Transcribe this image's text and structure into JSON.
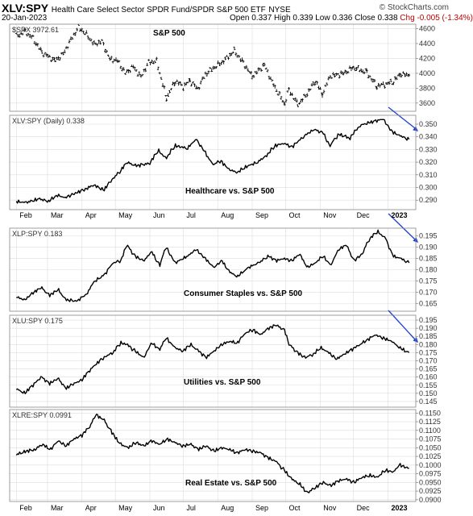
{
  "header": {
    "symbol": "XLV:SPY",
    "description": "Health Care Select Sector SPDR Fund/SPDR S&P 500 ETF",
    "exchange": "NYSE",
    "date": "20-Jan-2023",
    "open": "Open 0.337",
    "high": "High 0.339",
    "low": "Low 0.336",
    "close": "Close 0.338",
    "change": "Chg -0.005 (-1.34%)",
    "brand": "© StockCharts.com"
  },
  "colors": {
    "line": "#000000",
    "arrow": "#1f3fd0",
    "grid": "#dcdcdc",
    "border": "#888888"
  },
  "chart_data": [
    {
      "type": "ohlc",
      "series_label": "$SPX 3972.61",
      "annotation": "S&P 500",
      "y_ticks": [
        "3600",
        "3800",
        "4000",
        "4200",
        "4400",
        "4600"
      ],
      "ylim": [
        3490,
        4660
      ],
      "points": [
        [
          "2022-02-01",
          4500
        ],
        [
          "2022-02-09",
          4560
        ],
        [
          "2022-02-16",
          4470
        ],
        [
          "2022-02-24",
          4280
        ],
        [
          "2022-03-08",
          4170
        ],
        [
          "2022-03-15",
          4260
        ],
        [
          "2022-03-22",
          4450
        ],
        [
          "2022-03-29",
          4620
        ],
        [
          "2022-04-05",
          4520
        ],
        [
          "2022-04-12",
          4390
        ],
        [
          "2022-04-19",
          4430
        ],
        [
          "2022-04-26",
          4190
        ],
        [
          "2022-05-03",
          4170
        ],
        [
          "2022-05-10",
          4000
        ],
        [
          "2022-05-17",
          4090
        ],
        [
          "2022-05-24",
          3950
        ],
        [
          "2022-05-31",
          4150
        ],
        [
          "2022-06-07",
          4160
        ],
        [
          "2022-06-16",
          3670
        ],
        [
          "2022-06-24",
          3900
        ],
        [
          "2022-07-01",
          3820
        ],
        [
          "2022-07-07",
          3900
        ],
        [
          "2022-07-14",
          3790
        ],
        [
          "2022-07-21",
          3990
        ],
        [
          "2022-07-28",
          4070
        ],
        [
          "2022-08-05",
          4150
        ],
        [
          "2022-08-16",
          4300
        ],
        [
          "2022-08-24",
          4140
        ],
        [
          "2022-09-01",
          3960
        ],
        [
          "2022-09-12",
          4110
        ],
        [
          "2022-09-20",
          3850
        ],
        [
          "2022-09-30",
          3590
        ],
        [
          "2022-10-04",
          3780
        ],
        [
          "2022-10-12",
          3580
        ],
        [
          "2022-10-19",
          3700
        ],
        [
          "2022-10-28",
          3900
        ],
        [
          "2022-11-03",
          3720
        ],
        [
          "2022-11-10",
          3960
        ],
        [
          "2022-11-22",
          4000
        ],
        [
          "2022-12-01",
          4080
        ],
        [
          "2022-12-13",
          4010
        ],
        [
          "2022-12-22",
          3830
        ],
        [
          "2022-12-29",
          3850
        ],
        [
          "2023-01-06",
          3890
        ],
        [
          "2023-01-12",
          3990
        ],
        [
          "2023-01-20",
          3972.61
        ]
      ],
      "arrow": false
    },
    {
      "type": "line",
      "series_label": "XLV:SPY (Daily) 0.338",
      "annotation": "Healthcare vs. S&P 500",
      "y_ticks": [
        "0.290",
        "0.300",
        "0.310",
        "0.320",
        "0.330",
        "0.340",
        "0.350"
      ],
      "ylim": [
        0.2825,
        0.357
      ],
      "points": [
        [
          "2022-02-01",
          0.289
        ],
        [
          "2022-02-10",
          0.288
        ],
        [
          "2022-02-22",
          0.291
        ],
        [
          "2022-03-02",
          0.289
        ],
        [
          "2022-03-10",
          0.294
        ],
        [
          "2022-03-17",
          0.292
        ],
        [
          "2022-03-28",
          0.296
        ],
        [
          "2022-04-05",
          0.299
        ],
        [
          "2022-04-12",
          0.302
        ],
        [
          "2022-04-21",
          0.298
        ],
        [
          "2022-04-29",
          0.307
        ],
        [
          "2022-05-05",
          0.312
        ],
        [
          "2022-05-12",
          0.32
        ],
        [
          "2022-05-20",
          0.317
        ],
        [
          "2022-06-01",
          0.319
        ],
        [
          "2022-06-09",
          0.329
        ],
        [
          "2022-06-16",
          0.323
        ],
        [
          "2022-06-24",
          0.333
        ],
        [
          "2022-07-05",
          0.331
        ],
        [
          "2022-07-13",
          0.338
        ],
        [
          "2022-07-20",
          0.329
        ],
        [
          "2022-07-28",
          0.318
        ],
        [
          "2022-08-04",
          0.321
        ],
        [
          "2022-08-12",
          0.314
        ],
        [
          "2022-08-19",
          0.312
        ],
        [
          "2022-08-26",
          0.316
        ],
        [
          "2022-09-06",
          0.32
        ],
        [
          "2022-09-14",
          0.325
        ],
        [
          "2022-09-22",
          0.333
        ],
        [
          "2022-09-30",
          0.335
        ],
        [
          "2022-10-07",
          0.332
        ],
        [
          "2022-10-17",
          0.34
        ],
        [
          "2022-10-27",
          0.346
        ],
        [
          "2022-11-04",
          0.343
        ],
        [
          "2022-11-10",
          0.333
        ],
        [
          "2022-11-18",
          0.342
        ],
        [
          "2022-11-28",
          0.339
        ],
        [
          "2022-12-07",
          0.349
        ],
        [
          "2022-12-15",
          0.351
        ],
        [
          "2022-12-28",
          0.354
        ],
        [
          "2023-01-05",
          0.344
        ],
        [
          "2023-01-12",
          0.341
        ],
        [
          "2023-01-20",
          0.338
        ]
      ],
      "arrow": true
    },
    {
      "type": "line",
      "series_label": "XLP:SPY 0.183",
      "annotation": "Consumer Staples vs. S&P 500",
      "y_ticks": [
        "0.165",
        "0.170",
        "0.175",
        "0.180",
        "0.185",
        "0.190",
        "0.195"
      ],
      "ylim": [
        0.1615,
        0.1985
      ],
      "points": [
        [
          "2022-02-01",
          0.168
        ],
        [
          "2022-02-09",
          0.1665
        ],
        [
          "2022-02-17",
          0.17
        ],
        [
          "2022-02-24",
          0.172
        ],
        [
          "2022-03-03",
          0.1685
        ],
        [
          "2022-03-11",
          0.171
        ],
        [
          "2022-03-18",
          0.1665
        ],
        [
          "2022-03-28",
          0.166
        ],
        [
          "2022-04-06",
          0.1695
        ],
        [
          "2022-04-12",
          0.1745
        ],
        [
          "2022-04-22",
          0.178
        ],
        [
          "2022-04-29",
          0.183
        ],
        [
          "2022-05-06",
          0.184
        ],
        [
          "2022-05-12",
          0.191
        ],
        [
          "2022-05-19",
          0.186
        ],
        [
          "2022-05-27",
          0.184
        ],
        [
          "2022-06-03",
          0.188
        ],
        [
          "2022-06-10",
          0.182
        ],
        [
          "2022-06-16",
          0.19
        ],
        [
          "2022-06-24",
          0.183
        ],
        [
          "2022-07-05",
          0.186
        ],
        [
          "2022-07-13",
          0.189
        ],
        [
          "2022-07-21",
          0.185
        ],
        [
          "2022-07-29",
          0.181
        ],
        [
          "2022-08-05",
          0.184
        ],
        [
          "2022-08-12",
          0.179
        ],
        [
          "2022-08-19",
          0.177
        ],
        [
          "2022-08-29",
          0.181
        ],
        [
          "2022-09-07",
          0.183
        ],
        [
          "2022-09-16",
          0.186
        ],
        [
          "2022-09-23",
          0.184
        ],
        [
          "2022-09-30",
          0.185
        ],
        [
          "2022-10-07",
          0.184
        ],
        [
          "2022-10-14",
          0.187
        ],
        [
          "2022-10-21",
          0.181
        ],
        [
          "2022-10-28",
          0.183
        ],
        [
          "2022-11-04",
          0.186
        ],
        [
          "2022-11-11",
          0.182
        ],
        [
          "2022-11-18",
          0.189
        ],
        [
          "2022-11-25",
          0.191
        ],
        [
          "2022-12-02",
          0.184
        ],
        [
          "2022-12-09",
          0.187
        ],
        [
          "2022-12-16",
          0.194
        ],
        [
          "2022-12-23",
          0.197
        ],
        [
          "2022-12-30",
          0.194
        ],
        [
          "2023-01-06",
          0.186
        ],
        [
          "2023-01-13",
          0.185
        ],
        [
          "2023-01-20",
          0.183
        ]
      ],
      "arrow": true
    },
    {
      "type": "line",
      "series_label": "XLU:SPY 0.175",
      "annotation": "Utilities vs. S&P 500",
      "y_ticks": [
        "0.145",
        "0.150",
        "0.155",
        "0.160",
        "0.165",
        "0.170",
        "0.175",
        "0.180",
        "0.185",
        "0.190",
        "0.195"
      ],
      "ylim": [
        0.1415,
        0.198
      ],
      "points": [
        [
          "2022-02-01",
          0.153
        ],
        [
          "2022-02-09",
          0.15
        ],
        [
          "2022-02-16",
          0.155
        ],
        [
          "2022-02-24",
          0.16
        ],
        [
          "2022-03-03",
          0.156
        ],
        [
          "2022-03-11",
          0.159
        ],
        [
          "2022-03-18",
          0.153
        ],
        [
          "2022-03-25",
          0.156
        ],
        [
          "2022-04-01",
          0.158
        ],
        [
          "2022-04-08",
          0.164
        ],
        [
          "2022-04-14",
          0.168
        ],
        [
          "2022-04-21",
          0.172
        ],
        [
          "2022-04-29",
          0.175
        ],
        [
          "2022-05-06",
          0.181
        ],
        [
          "2022-05-12",
          0.18
        ],
        [
          "2022-05-19",
          0.176
        ],
        [
          "2022-05-27",
          0.172
        ],
        [
          "2022-06-03",
          0.181
        ],
        [
          "2022-06-10",
          0.177
        ],
        [
          "2022-06-16",
          0.184
        ],
        [
          "2022-06-24",
          0.178
        ],
        [
          "2022-07-01",
          0.176
        ],
        [
          "2022-07-08",
          0.18
        ],
        [
          "2022-07-15",
          0.176
        ],
        [
          "2022-07-22",
          0.172
        ],
        [
          "2022-07-29",
          0.176
        ],
        [
          "2022-08-05",
          0.18
        ],
        [
          "2022-08-12",
          0.182
        ],
        [
          "2022-08-19",
          0.181
        ],
        [
          "2022-08-26",
          0.187
        ],
        [
          "2022-09-02",
          0.189
        ],
        [
          "2022-09-09",
          0.186
        ],
        [
          "2022-09-16",
          0.19
        ],
        [
          "2022-09-23",
          0.192
        ],
        [
          "2022-09-30",
          0.189
        ],
        [
          "2022-10-05",
          0.18
        ],
        [
          "2022-10-12",
          0.175
        ],
        [
          "2022-10-19",
          0.172
        ],
        [
          "2022-10-26",
          0.174
        ],
        [
          "2022-11-02",
          0.178
        ],
        [
          "2022-11-09",
          0.175
        ],
        [
          "2022-11-16",
          0.171
        ],
        [
          "2022-11-23",
          0.174
        ],
        [
          "2022-11-30",
          0.177
        ],
        [
          "2022-12-07",
          0.18
        ],
        [
          "2022-12-14",
          0.183
        ],
        [
          "2022-12-21",
          0.186
        ],
        [
          "2022-12-28",
          0.184
        ],
        [
          "2023-01-05",
          0.182
        ],
        [
          "2023-01-12",
          0.178
        ],
        [
          "2023-01-20",
          0.175
        ]
      ],
      "arrow": true
    },
    {
      "type": "line",
      "series_label": "XLRE:SPY 0.0991",
      "annotation": "Real Estate vs. S&P 500",
      "y_ticks": [
        "0.0900",
        "0.0925",
        "0.0950",
        "0.0975",
        "0.1000",
        "0.1025",
        "0.1050",
        "0.1075",
        "0.1100",
        "0.1125",
        "0.1150"
      ],
      "ylim": [
        0.0895,
        0.116
      ],
      "points": [
        [
          "2022-02-01",
          0.103
        ],
        [
          "2022-02-10",
          0.104
        ],
        [
          "2022-02-18",
          0.1045
        ],
        [
          "2022-02-25",
          0.106
        ],
        [
          "2022-03-04",
          0.1045
        ],
        [
          "2022-03-11",
          0.107
        ],
        [
          "2022-03-18",
          0.1055
        ],
        [
          "2022-03-25",
          0.1075
        ],
        [
          "2022-04-01",
          0.1085
        ],
        [
          "2022-04-08",
          0.111
        ],
        [
          "2022-04-14",
          0.1145
        ],
        [
          "2022-04-21",
          0.113
        ],
        [
          "2022-04-29",
          0.109
        ],
        [
          "2022-05-06",
          0.106
        ],
        [
          "2022-05-13",
          0.105
        ],
        [
          "2022-05-20",
          0.1065
        ],
        [
          "2022-05-27",
          0.1055
        ],
        [
          "2022-06-03",
          0.107
        ],
        [
          "2022-06-10",
          0.106
        ],
        [
          "2022-06-17",
          0.1075
        ],
        [
          "2022-06-24",
          0.1065
        ],
        [
          "2022-07-01",
          0.1055
        ],
        [
          "2022-07-08",
          0.106
        ],
        [
          "2022-07-15",
          0.1045
        ],
        [
          "2022-07-22",
          0.1055
        ],
        [
          "2022-07-29",
          0.104
        ],
        [
          "2022-08-05",
          0.105
        ],
        [
          "2022-08-12",
          0.1045
        ],
        [
          "2022-08-19",
          0.1035
        ],
        [
          "2022-08-26",
          0.1045
        ],
        [
          "2022-09-02",
          0.104
        ],
        [
          "2022-09-09",
          0.1035
        ],
        [
          "2022-09-16",
          0.102
        ],
        [
          "2022-09-23",
          0.101
        ],
        [
          "2022-09-30",
          0.0985
        ],
        [
          "2022-10-07",
          0.096
        ],
        [
          "2022-10-14",
          0.0945
        ],
        [
          "2022-10-21",
          0.092
        ],
        [
          "2022-10-28",
          0.0935
        ],
        [
          "2022-11-04",
          0.095
        ],
        [
          "2022-11-11",
          0.094
        ],
        [
          "2022-11-18",
          0.0955
        ],
        [
          "2022-11-25",
          0.096
        ],
        [
          "2022-12-02",
          0.095
        ],
        [
          "2022-12-09",
          0.0965
        ],
        [
          "2022-12-16",
          0.097
        ],
        [
          "2022-12-23",
          0.0965
        ],
        [
          "2022-12-30",
          0.0985
        ],
        [
          "2023-01-06",
          0.098
        ],
        [
          "2023-01-12",
          0.1
        ],
        [
          "2023-01-20",
          0.0991
        ]
      ],
      "arrow": false
    }
  ],
  "x_axis": {
    "start": "2022-01-26",
    "end": "2023-01-26",
    "ticks": [
      {
        "label": "Feb",
        "date": "2022-02-01"
      },
      {
        "label": "Mar",
        "date": "2022-03-01"
      },
      {
        "label": "Apr",
        "date": "2022-04-01"
      },
      {
        "label": "May",
        "date": "2022-05-01"
      },
      {
        "label": "Jun",
        "date": "2022-06-01"
      },
      {
        "label": "Jul",
        "date": "2022-07-01"
      },
      {
        "label": "Aug",
        "date": "2022-08-01"
      },
      {
        "label": "Sep",
        "date": "2022-09-01"
      },
      {
        "label": "Oct",
        "date": "2022-10-01"
      },
      {
        "label": "Nov",
        "date": "2022-11-01"
      },
      {
        "label": "Dec",
        "date": "2022-12-01"
      },
      {
        "label": "2023",
        "date": "2023-01-01",
        "bold": true
      }
    ]
  }
}
